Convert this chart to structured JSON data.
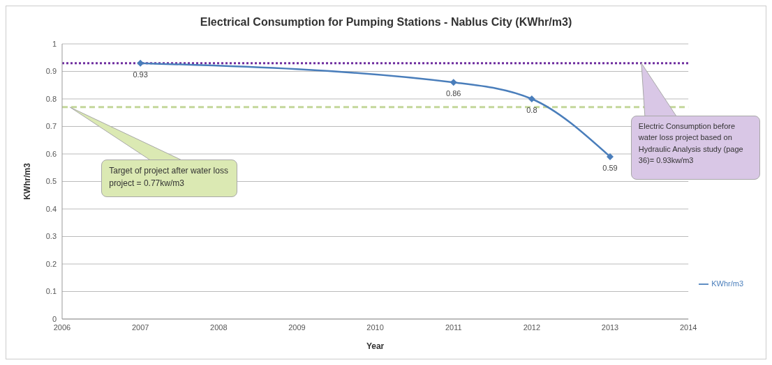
{
  "chart_data": {
    "type": "line",
    "title": "Electrical Consumption for Pumping Stations - Nablus City (KWhr/m3)",
    "xlabel": "Year",
    "ylabel": "KWhr/m3",
    "x": [
      2007,
      2011,
      2012,
      2013
    ],
    "series": [
      {
        "name": "KWhr/m3",
        "color": "#4a7ebb",
        "values": [
          0.93,
          0.86,
          0.8,
          0.59
        ]
      }
    ],
    "xlim": [
      2006,
      2014
    ],
    "xticks": [
      2006,
      2007,
      2008,
      2009,
      2010,
      2011,
      2012,
      2013,
      2014
    ],
    "ylim": [
      0,
      1
    ],
    "yticks": [
      0,
      0.1,
      0.2,
      0.3,
      0.4,
      0.5,
      0.6,
      0.7,
      0.8,
      0.9,
      1
    ],
    "ref_lines": [
      {
        "axis": "y",
        "value": 0.93,
        "color": "#7030a0",
        "line_style": "dotted"
      },
      {
        "axis": "y",
        "value": 0.77,
        "color": "#c4d79b",
        "line_style": "dashed"
      }
    ],
    "annotations": [
      "Electric Consumption before water loss project based on Hydraulic Analysis study (page 36)= 0.93kw/m3",
      {
        "text": "Target of project after water loss project = 0.77kw/m3",
        "x": 2006.1,
        "y": 0.77
      }
    ],
    "grid": "y",
    "legend": "right",
    "marker": "diamond",
    "line_style": "solid",
    "data_labels": true
  }
}
